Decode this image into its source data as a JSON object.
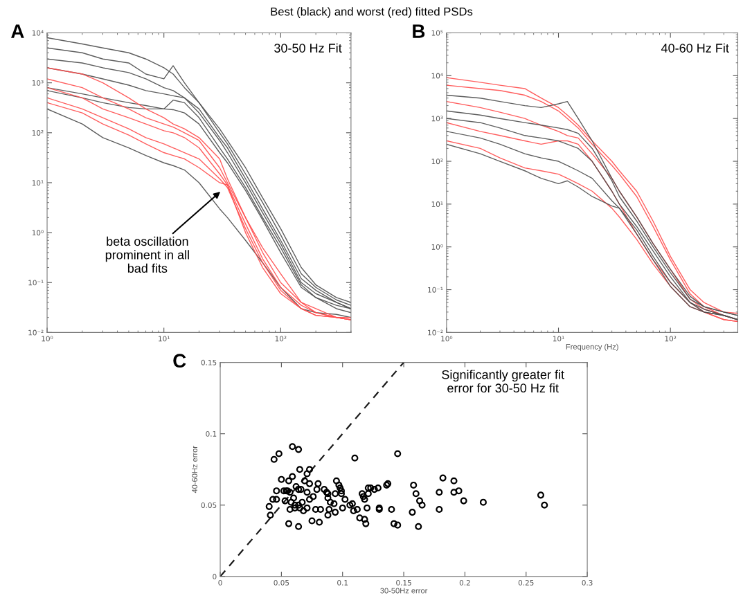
{
  "chart_data": [
    {
      "type": "line",
      "title": "Best (black) and worst (red) fitted PSDs",
      "log": "xy",
      "grid": false,
      "annotations": [
        "A",
        "30-50 Hz Fit",
        "beta oscillation\nprominent in all\nbad fits"
      ],
      "x": [
        1,
        2,
        3,
        5,
        7,
        10,
        12,
        15,
        20,
        30,
        35,
        50,
        70,
        100,
        150,
        200,
        300,
        400
      ],
      "xlim": [
        1,
        400
      ],
      "ylim": [
        0.01,
        10000
      ],
      "xticks": [
        {
          "value": 1,
          "label": "10⁰"
        },
        {
          "value": 10,
          "label": "10¹"
        },
        {
          "value": 100,
          "label": "10²"
        }
      ],
      "yticks": [
        {
          "value": 0.01,
          "label": "10⁻²"
        },
        {
          "value": 0.1,
          "label": "10⁻¹"
        },
        {
          "value": 1,
          "label": "10⁰"
        },
        {
          "value": 10,
          "label": "10¹"
        },
        {
          "value": 100,
          "label": "10²"
        },
        {
          "value": 1000,
          "label": "10³"
        },
        {
          "value": 10000,
          "label": "10⁴"
        }
      ],
      "series": [
        {
          "color": "#4d4d4d",
          "values": [
            8000,
            6000,
            5000,
            4000,
            3000,
            2000,
            1500,
            800,
            400,
            120,
            70,
            20,
            5,
            1.2,
            0.2,
            0.09,
            0.05,
            0.04
          ]
        },
        {
          "color": "#4d4d4d",
          "values": [
            5000,
            4000,
            3000,
            2500,
            1500,
            1200,
            2200,
            1000,
            400,
            100,
            60,
            15,
            4,
            0.9,
            0.15,
            0.08,
            0.045,
            0.035
          ]
        },
        {
          "color": "#4d4d4d",
          "values": [
            3000,
            2500,
            2000,
            1600,
            1200,
            800,
            700,
            500,
            300,
            80,
            50,
            12,
            3,
            0.7,
            0.12,
            0.07,
            0.04,
            0.03
          ]
        },
        {
          "color": "#4d4d4d",
          "values": [
            2000,
            1500,
            1200,
            900,
            700,
            600,
            550,
            500,
            250,
            70,
            40,
            10,
            2.5,
            0.6,
            0.1,
            0.06,
            0.04,
            0.03
          ]
        },
        {
          "color": "#4d4d4d",
          "values": [
            800,
            600,
            500,
            400,
            350,
            300,
            450,
            400,
            200,
            50,
            30,
            8,
            2,
            0.5,
            0.09,
            0.05,
            0.035,
            0.03
          ]
        },
        {
          "color": "#4d4d4d",
          "values": [
            700,
            500,
            400,
            320,
            300,
            300,
            290,
            250,
            150,
            40,
            25,
            7,
            1.8,
            0.4,
            0.08,
            0.05,
            0.03,
            0.025
          ]
        },
        {
          "color": "#4d4d4d",
          "values": [
            300,
            150,
            80,
            50,
            35,
            25,
            22,
            18,
            10,
            3,
            2,
            0.7,
            0.25,
            0.08,
            0.03,
            0.025,
            0.023,
            0.02
          ]
        },
        {
          "color": "#ff4d4d",
          "values": [
            2000,
            1500,
            1000,
            500,
            300,
            200,
            150,
            120,
            80,
            30,
            12,
            2,
            0.5,
            0.15,
            0.04,
            0.03,
            0.02,
            0.02
          ]
        },
        {
          "color": "#ff4d4d",
          "values": [
            1200,
            800,
            500,
            300,
            200,
            150,
            130,
            100,
            70,
            20,
            10,
            2,
            0.4,
            0.1,
            0.04,
            0.025,
            0.02,
            0.018
          ]
        },
        {
          "color": "#ff4d4d",
          "values": [
            800,
            500,
            300,
            200,
            150,
            110,
            100,
            80,
            50,
            15,
            9,
            1.5,
            0.3,
            0.08,
            0.035,
            0.025,
            0.02,
            0.018
          ]
        },
        {
          "color": "#ff4d4d",
          "values": [
            500,
            300,
            200,
            120,
            80,
            60,
            50,
            40,
            30,
            12,
            8,
            1.2,
            0.25,
            0.07,
            0.03,
            0.022,
            0.02,
            0.018
          ]
        },
        {
          "color": "#ff4d4d",
          "values": [
            400,
            250,
            150,
            90,
            60,
            40,
            35,
            30,
            20,
            10,
            9,
            1,
            0.2,
            0.06,
            0.03,
            0.022,
            0.02,
            0.018
          ]
        }
      ]
    },
    {
      "type": "line",
      "xlabel": "Frequency (Hz)",
      "log": "xy",
      "grid": false,
      "annotations": [
        "B",
        "40-60 Hz Fit"
      ],
      "x": [
        1,
        2,
        3,
        5,
        7,
        10,
        12,
        15,
        20,
        30,
        35,
        50,
        70,
        100,
        150,
        200,
        300,
        400
      ],
      "xlim": [
        1,
        400
      ],
      "ylim": [
        0.01,
        100000
      ],
      "xticks": [
        {
          "value": 1,
          "label": "10⁰"
        },
        {
          "value": 10,
          "label": "10¹"
        },
        {
          "value": 100,
          "label": "10²"
        }
      ],
      "yticks": [
        {
          "value": 0.01,
          "label": "10⁻²"
        },
        {
          "value": 0.1,
          "label": "10⁻¹"
        },
        {
          "value": 1,
          "label": "10⁰"
        },
        {
          "value": 10,
          "label": "10¹"
        },
        {
          "value": 100,
          "label": "10²"
        },
        {
          "value": 1000,
          "label": "10³"
        },
        {
          "value": 10000,
          "label": "10⁴"
        },
        {
          "value": 100000,
          "label": "10⁵"
        }
      ],
      "series": [
        {
          "color": "#ff4d4d",
          "values": [
            9000,
            7000,
            6000,
            5000,
            3000,
            1800,
            1200,
            700,
            300,
            100,
            60,
            20,
            4,
            0.6,
            0.1,
            0.05,
            0.03,
            0.028
          ]
        },
        {
          "color": "#ff4d4d",
          "values": [
            6000,
            5000,
            4500,
            3500,
            2500,
            1500,
            1000,
            600,
            250,
            80,
            50,
            15,
            3,
            0.5,
            0.08,
            0.04,
            0.025,
            0.02
          ]
        },
        {
          "color": "#ff4d4d",
          "values": [
            2500,
            1800,
            1400,
            1000,
            700,
            500,
            400,
            350,
            150,
            40,
            20,
            5,
            1.2,
            0.3,
            0.06,
            0.035,
            0.025,
            0.02
          ]
        },
        {
          "color": "#ff4d4d",
          "values": [
            800,
            500,
            400,
            300,
            250,
            300,
            300,
            250,
            100,
            20,
            10,
            2,
            0.5,
            0.15,
            0.05,
            0.03,
            0.02,
            0.018
          ]
        },
        {
          "color": "#ff4d4d",
          "values": [
            300,
            200,
            120,
            70,
            60,
            50,
            40,
            30,
            20,
            8,
            5,
            1.5,
            0.4,
            0.12,
            0.04,
            0.03,
            0.02,
            0.018
          ]
        },
        {
          "color": "#4d4d4d",
          "values": [
            3500,
            3000,
            2500,
            2000,
            1800,
            2200,
            2500,
            1000,
            300,
            40,
            20,
            5,
            1.2,
            0.3,
            0.07,
            0.04,
            0.03,
            0.025
          ]
        },
        {
          "color": "#4d4d4d",
          "values": [
            1500,
            1200,
            1000,
            800,
            700,
            600,
            550,
            450,
            200,
            35,
            15,
            4,
            1,
            0.25,
            0.06,
            0.04,
            0.03,
            0.025
          ]
        },
        {
          "color": "#4d4d4d",
          "values": [
            1000,
            800,
            600,
            400,
            350,
            300,
            250,
            200,
            100,
            20,
            10,
            3,
            0.8,
            0.2,
            0.05,
            0.035,
            0.025,
            0.02
          ]
        },
        {
          "color": "#4d4d4d",
          "values": [
            500,
            350,
            250,
            150,
            120,
            100,
            80,
            60,
            40,
            12,
            8,
            2.5,
            0.6,
            0.15,
            0.05,
            0.03,
            0.025,
            0.02
          ]
        },
        {
          "color": "#4d4d4d",
          "values": [
            250,
            150,
            100,
            60,
            40,
            30,
            35,
            25,
            15,
            9,
            8,
            2,
            0.5,
            0.12,
            0.04,
            0.03,
            0.025,
            0.02
          ]
        }
      ]
    },
    {
      "type": "scatter",
      "xlabel": "30-50Hz error",
      "ylabel": "40-60Hz error",
      "grid": false,
      "annotations": [
        "C",
        "Significantly greater fit\nerror for 30-50 Hz fit"
      ],
      "xlim": [
        0,
        0.3
      ],
      "ylim": [
        0,
        0.15
      ],
      "xticks": [
        0,
        0.05,
        0.1,
        0.15,
        0.2,
        0.25,
        0.3
      ],
      "yticks": [
        0,
        0.05,
        0.1,
        0.15
      ],
      "series": [
        {
          "type": "line",
          "color": "#000000",
          "line_style": "dashed",
          "marker": "none",
          "x": [
            0,
            0.15
          ],
          "values": [
            0,
            0.15
          ]
        },
        {
          "type": "scatter",
          "color": "#000000",
          "marker": "circle",
          "x": [
            0.044,
            0.048,
            0.059,
            0.064,
            0.11,
            0.065,
            0.071,
            0.073,
            0.059,
            0.056,
            0.05,
            0.069,
            0.073,
            0.08,
            0.095,
            0.097,
            0.098,
            0.099,
            0.046,
            0.052,
            0.054,
            0.055,
            0.057,
            0.062,
            0.064,
            0.066,
            0.071,
            0.079,
            0.085,
            0.087,
            0.088,
            0.094,
            0.099,
            0.043,
            0.046,
            0.053,
            0.058,
            0.06,
            0.061,
            0.064,
            0.067,
            0.076,
            0.073,
            0.088,
            0.09,
            0.093,
            0.102,
            0.106,
            0.108,
            0.1,
            0.04,
            0.041,
            0.057,
            0.061,
            0.065,
            0.071,
            0.068,
            0.078,
            0.082,
            0.089,
            0.094,
            0.088,
            0.075,
            0.081,
            0.056,
            0.064,
            0.109,
            0.112,
            0.12,
            0.114,
            0.118,
            0.119,
            0.116,
            0.117,
            0.118,
            0.121,
            0.121,
            0.123,
            0.126,
            0.129,
            0.13,
            0.13,
            0.136,
            0.137,
            0.145,
            0.14,
            0.142,
            0.145,
            0.158,
            0.16,
            0.163,
            0.165,
            0.157,
            0.162,
            0.179,
            0.182,
            0.191,
            0.191,
            0.195,
            0.199,
            0.179,
            0.215,
            0.262,
            0.265
          ],
          "values": [
            0.082,
            0.086,
            0.091,
            0.089,
            0.083,
            0.075,
            0.072,
            0.075,
            0.07,
            0.067,
            0.068,
            0.067,
            0.065,
            0.065,
            0.067,
            0.064,
            0.062,
            0.06,
            0.06,
            0.06,
            0.06,
            0.06,
            0.059,
            0.063,
            0.061,
            0.061,
            0.059,
            0.061,
            0.061,
            0.059,
            0.058,
            0.058,
            0.058,
            0.054,
            0.054,
            0.053,
            0.052,
            0.055,
            0.05,
            0.05,
            0.052,
            0.056,
            0.054,
            0.055,
            0.052,
            0.051,
            0.054,
            0.05,
            0.051,
            0.048,
            0.049,
            0.043,
            0.047,
            0.048,
            0.048,
            0.048,
            0.046,
            0.047,
            0.047,
            0.047,
            0.045,
            0.043,
            0.039,
            0.038,
            0.037,
            0.035,
            0.046,
            0.047,
            0.048,
            0.041,
            0.04,
            0.037,
            0.058,
            0.056,
            0.054,
            0.058,
            0.062,
            0.062,
            0.061,
            0.062,
            0.048,
            0.047,
            0.064,
            0.065,
            0.086,
            0.047,
            0.037,
            0.036,
            0.064,
            0.058,
            0.053,
            0.05,
            0.045,
            0.035,
            0.059,
            0.069,
            0.067,
            0.059,
            0.06,
            0.053,
            0.047,
            0.052,
            0.057,
            0.05
          ]
        }
      ]
    }
  ]
}
